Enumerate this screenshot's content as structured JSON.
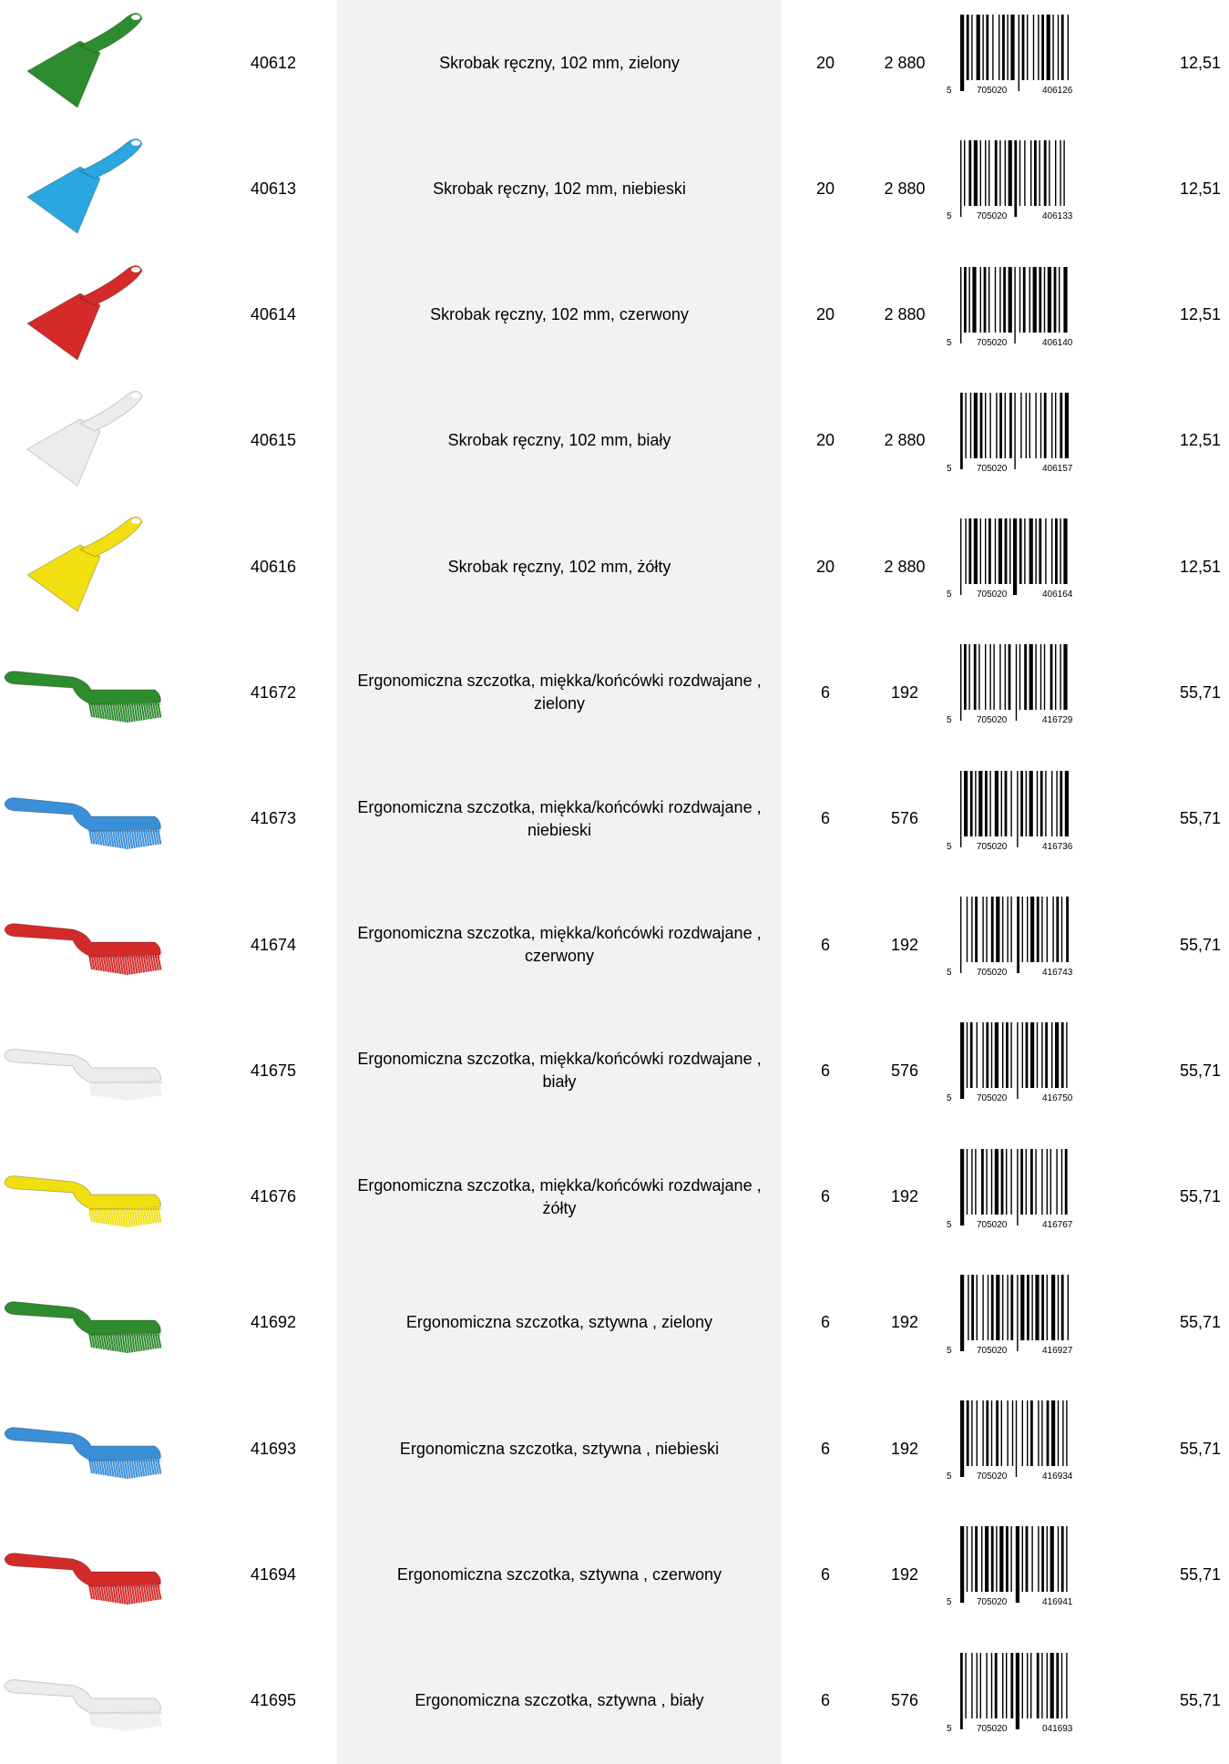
{
  "table": {
    "rows": [
      {
        "code": "40612",
        "description": "Skrobak ręczny, 102 mm, zielony",
        "qty": "20",
        "pallet": "2 880",
        "barcode": [
          "5",
          "705020",
          "406126"
        ],
        "price": "12,51",
        "color": "#2e8b2e"
      },
      {
        "code": "40613",
        "description": "Skrobak ręczny, 102 mm, niebieski",
        "qty": "20",
        "pallet": "2 880",
        "barcode": [
          "5",
          "705020",
          "406133"
        ],
        "price": "12,51",
        "color": "#2aa7e0"
      },
      {
        "code": "40614",
        "description": "Skrobak ręczny, 102 mm, czerwony",
        "qty": "20",
        "pallet": "2 880",
        "barcode": [
          "5",
          "705020",
          "406140"
        ],
        "price": "12,51",
        "color": "#d42a2a"
      },
      {
        "code": "40615",
        "description": "Skrobak ręczny, 102 mm, biały",
        "qty": "20",
        "pallet": "2 880",
        "barcode": [
          "5",
          "705020",
          "406157"
        ],
        "price": "12,51",
        "color": "#ececec"
      },
      {
        "code": "40616",
        "description": "Skrobak ręczny, 102 mm, żółty",
        "qty": "20",
        "pallet": "2 880",
        "barcode": [
          "5",
          "705020",
          "406164"
        ],
        "price": "12,51",
        "color": "#f2df10"
      },
      {
        "code": "41672",
        "description": "Ergonomiczna szczotka, miękka/końcówki rozdwajane , zielony",
        "qty": "6",
        "pallet": "192",
        "barcode": [
          "5",
          "705020",
          "416729"
        ],
        "price": "55,71",
        "color": "#2e8b2e"
      },
      {
        "code": "41673",
        "description": "Ergonomiczna szczotka, miękka/końcówki rozdwajane , niebieski",
        "qty": "6",
        "pallet": "576",
        "barcode": [
          "5",
          "705020",
          "416736"
        ],
        "price": "55,71",
        "color": "#3a8fd8"
      },
      {
        "code": "41674",
        "description": "Ergonomiczna szczotka, miękka/końcówki rozdwajane , czerwony",
        "qty": "6",
        "pallet": "192",
        "barcode": [
          "5",
          "705020",
          "416743"
        ],
        "price": "55,71",
        "color": "#d42a2a"
      },
      {
        "code": "41675",
        "description": "Ergonomiczna szczotka, miękka/końcówki rozdwajane , biały",
        "qty": "6",
        "pallet": "576",
        "barcode": [
          "5",
          "705020",
          "416750"
        ],
        "price": "55,71",
        "color": "#ececec"
      },
      {
        "code": "41676",
        "description": "Ergonomiczna szczotka, miękka/końcówki rozdwajane , żółty",
        "qty": "6",
        "pallet": "192",
        "barcode": [
          "5",
          "705020",
          "416767"
        ],
        "price": "55,71",
        "color": "#f2df10"
      },
      {
        "code": "41692",
        "description": "Ergonomiczna szczotka, sztywna , zielony",
        "qty": "6",
        "pallet": "192",
        "barcode": [
          "5",
          "705020",
          "416927"
        ],
        "price": "55,71",
        "color": "#2e8b2e"
      },
      {
        "code": "41693",
        "description": "Ergonomiczna szczotka, sztywna , niebieski",
        "qty": "6",
        "pallet": "192",
        "barcode": [
          "5",
          "705020",
          "416934"
        ],
        "price": "55,71",
        "color": "#3a8fd8"
      },
      {
        "code": "41694",
        "description": "Ergonomiczna szczotka, sztywna , czerwony",
        "qty": "6",
        "pallet": "192",
        "barcode": [
          "5",
          "705020",
          "416941"
        ],
        "price": "55,71",
        "color": "#d42a2a"
      },
      {
        "code": "41695",
        "description": "Ergonomiczna szczotka, sztywna , biały",
        "qty": "6",
        "pallet": "576",
        "barcode": [
          "5",
          "705020",
          "041693"
        ],
        "price": "55,71",
        "color": "#ececec"
      }
    ]
  }
}
